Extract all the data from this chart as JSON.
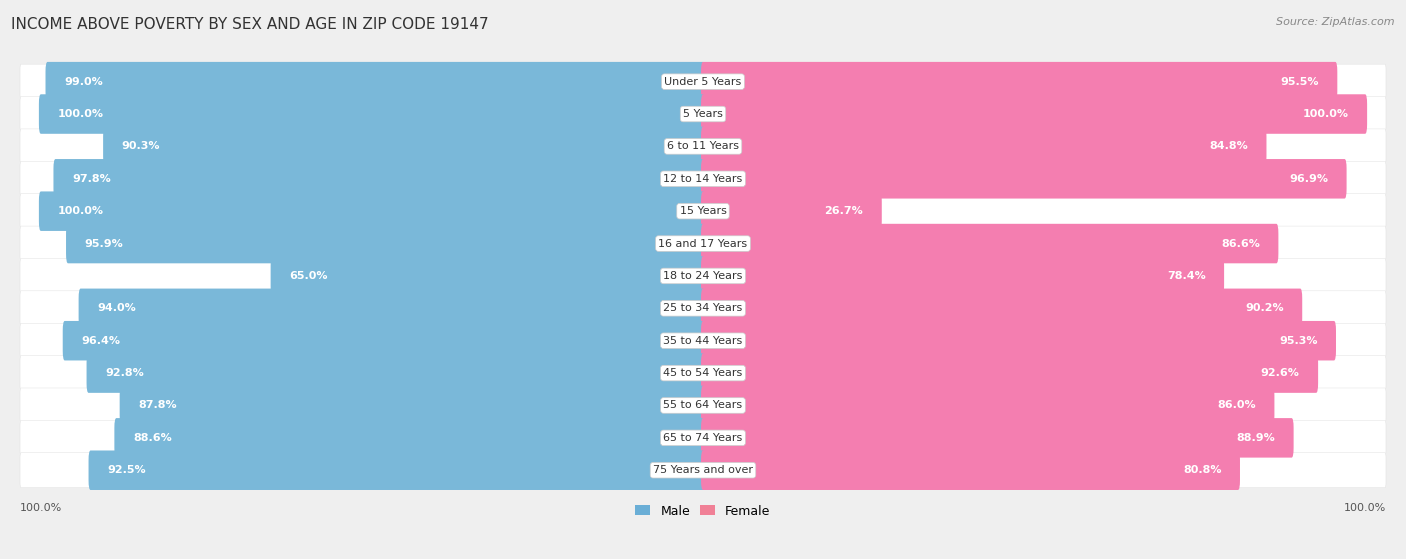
{
  "title": "INCOME ABOVE POVERTY BY SEX AND AGE IN ZIP CODE 19147",
  "source": "Source: ZipAtlas.com",
  "categories": [
    "Under 5 Years",
    "5 Years",
    "6 to 11 Years",
    "12 to 14 Years",
    "15 Years",
    "16 and 17 Years",
    "18 to 24 Years",
    "25 to 34 Years",
    "35 to 44 Years",
    "45 to 54 Years",
    "55 to 64 Years",
    "65 to 74 Years",
    "75 Years and over"
  ],
  "male_values": [
    99.0,
    100.0,
    90.3,
    97.8,
    100.0,
    95.9,
    65.0,
    94.0,
    96.4,
    92.8,
    87.8,
    88.6,
    92.5
  ],
  "female_values": [
    95.5,
    100.0,
    84.8,
    96.9,
    26.7,
    86.6,
    78.4,
    90.2,
    95.3,
    92.6,
    86.0,
    88.9,
    80.8
  ],
  "male_color": "#7ab8d9",
  "female_color": "#f47eb0",
  "male_color_light": "#b8d8ea",
  "female_color_light": "#f9c0d5",
  "male_label": "Male",
  "female_label": "Female",
  "male_swatch": "#6aaed6",
  "female_swatch": "#f08096",
  "bg_color": "#efefef",
  "row_bg_color": "#ffffff",
  "title_fontsize": 11,
  "source_fontsize": 8,
  "value_fontsize": 8,
  "category_fontsize": 8,
  "legend_fontsize": 9,
  "axis_label_fontsize": 8
}
